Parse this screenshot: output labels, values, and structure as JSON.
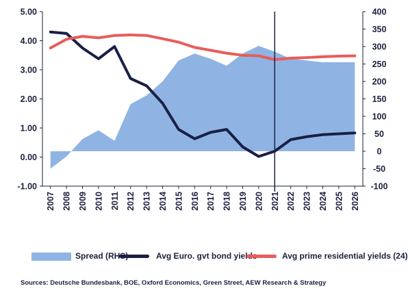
{
  "chart_data": {
    "type": "line",
    "categories": [
      "2007",
      "2008",
      "2009",
      "2010",
      "2011",
      "2012",
      "2013",
      "2014",
      "2015",
      "2016",
      "2017",
      "2018",
      "2019",
      "2020",
      "2021",
      "2022",
      "2023",
      "2024",
      "2025",
      "2026"
    ],
    "left_axis": {
      "ylim": [
        -1.0,
        5.0
      ],
      "ticks": [
        "-1.00",
        "0.00",
        "1.00",
        "2.00",
        "3.00",
        "4.00",
        "5.00"
      ]
    },
    "right_axis": {
      "ylim": [
        -100,
        400
      ],
      "ticks": [
        "-100",
        "-50",
        "0",
        "50",
        "100",
        "150",
        "200",
        "250",
        "300",
        "350",
        "400"
      ]
    },
    "forecast_divider_at": "2021",
    "series": [
      {
        "name": "Spread (RHS)",
        "type": "area",
        "axis": "right",
        "color": "#8fb4e3",
        "values": [
          -50,
          -15,
          35,
          60,
          30,
          135,
          160,
          200,
          260,
          280,
          265,
          245,
          280,
          302,
          285,
          265,
          260,
          255,
          255,
          255
        ]
      },
      {
        "name": "Avg Euro. gvt bond yields",
        "type": "line",
        "axis": "left",
        "color": "#1b1f45",
        "values": [
          4.3,
          4.25,
          3.75,
          3.38,
          3.8,
          2.7,
          2.45,
          1.85,
          0.95,
          0.63,
          0.85,
          0.95,
          0.35,
          0.02,
          0.2,
          0.6,
          0.7,
          0.77,
          0.8,
          0.83
        ]
      },
      {
        "name": "Avg prime residential yields (24)",
        "type": "line",
        "axis": "left",
        "color": "#e85c5c",
        "values": [
          3.75,
          4.05,
          4.15,
          4.1,
          4.18,
          4.2,
          4.18,
          4.07,
          3.95,
          3.77,
          3.67,
          3.57,
          3.5,
          3.48,
          3.35,
          3.4,
          3.42,
          3.45,
          3.47,
          3.48
        ]
      }
    ]
  },
  "legend": {
    "spread": "Spread (RHS)",
    "bond": "Avg Euro. gvt bond yields",
    "prime": "Avg prime residential yields (24)"
  },
  "source": "Sources: Deutsche Bundesbank, BOE, Oxford Economics, Green Street, AEW Research & Strategy"
}
